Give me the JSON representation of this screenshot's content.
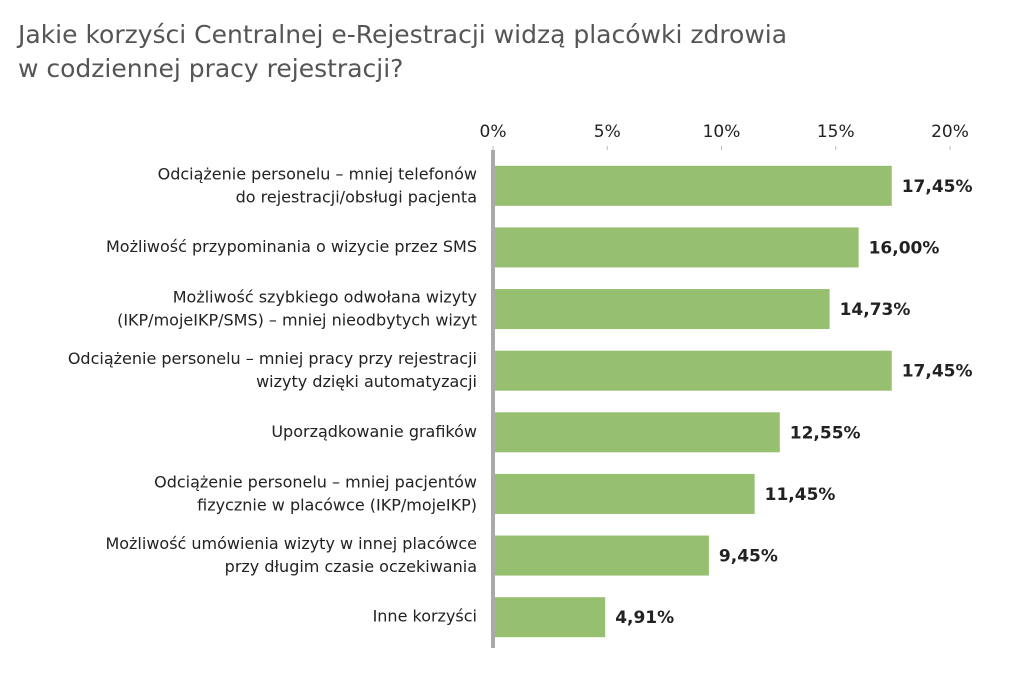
{
  "chart_data": {
    "type": "hbar",
    "title": "Jakie korzyści Centralnej e-Rejestracji widzą placówki zdrowia\nw codziennej pracy rejestracji?",
    "categories": [
      "Odciążenie personelu – mniej telefonów\ndo rejestracji/obsługi pacjenta",
      "Możliwość przypominania o wizycie przez SMS",
      "Możliwość szybkiego odwołana wizyty\n(IKP/mojeIKP/SMS) – mniej nieodbytych wizyt",
      "Odciążenie personelu – mniej pracy przy rejestracji\nwizyty dzięki automatyzacji",
      "Uporządkowanie grafików",
      "Odciążenie personelu – mniej pacjentów\nfizycznie w placówce (IKP/mojeIKP)",
      "Możliwość umówienia wizyty w innej placówce\nprzy długim czasie oczekiwania",
      "Inne korzyści"
    ],
    "values": [
      17.45,
      16.0,
      14.73,
      17.45,
      12.55,
      11.45,
      9.45,
      4.91
    ],
    "value_labels": [
      "17,45%",
      "16,00%",
      "14,73%",
      "17,45%",
      "12,55%",
      "11,45%",
      "9,45%",
      "4,91%"
    ],
    "color": "#96bf6f",
    "xlim": [
      0,
      20
    ],
    "xticks": [
      {
        "value": 0,
        "label": "0%"
      },
      {
        "value": 5,
        "label": "5%"
      },
      {
        "value": 10,
        "label": "10%"
      },
      {
        "value": 15,
        "label": "15%"
      },
      {
        "value": 20,
        "label": "20%"
      }
    ],
    "grid": false
  }
}
